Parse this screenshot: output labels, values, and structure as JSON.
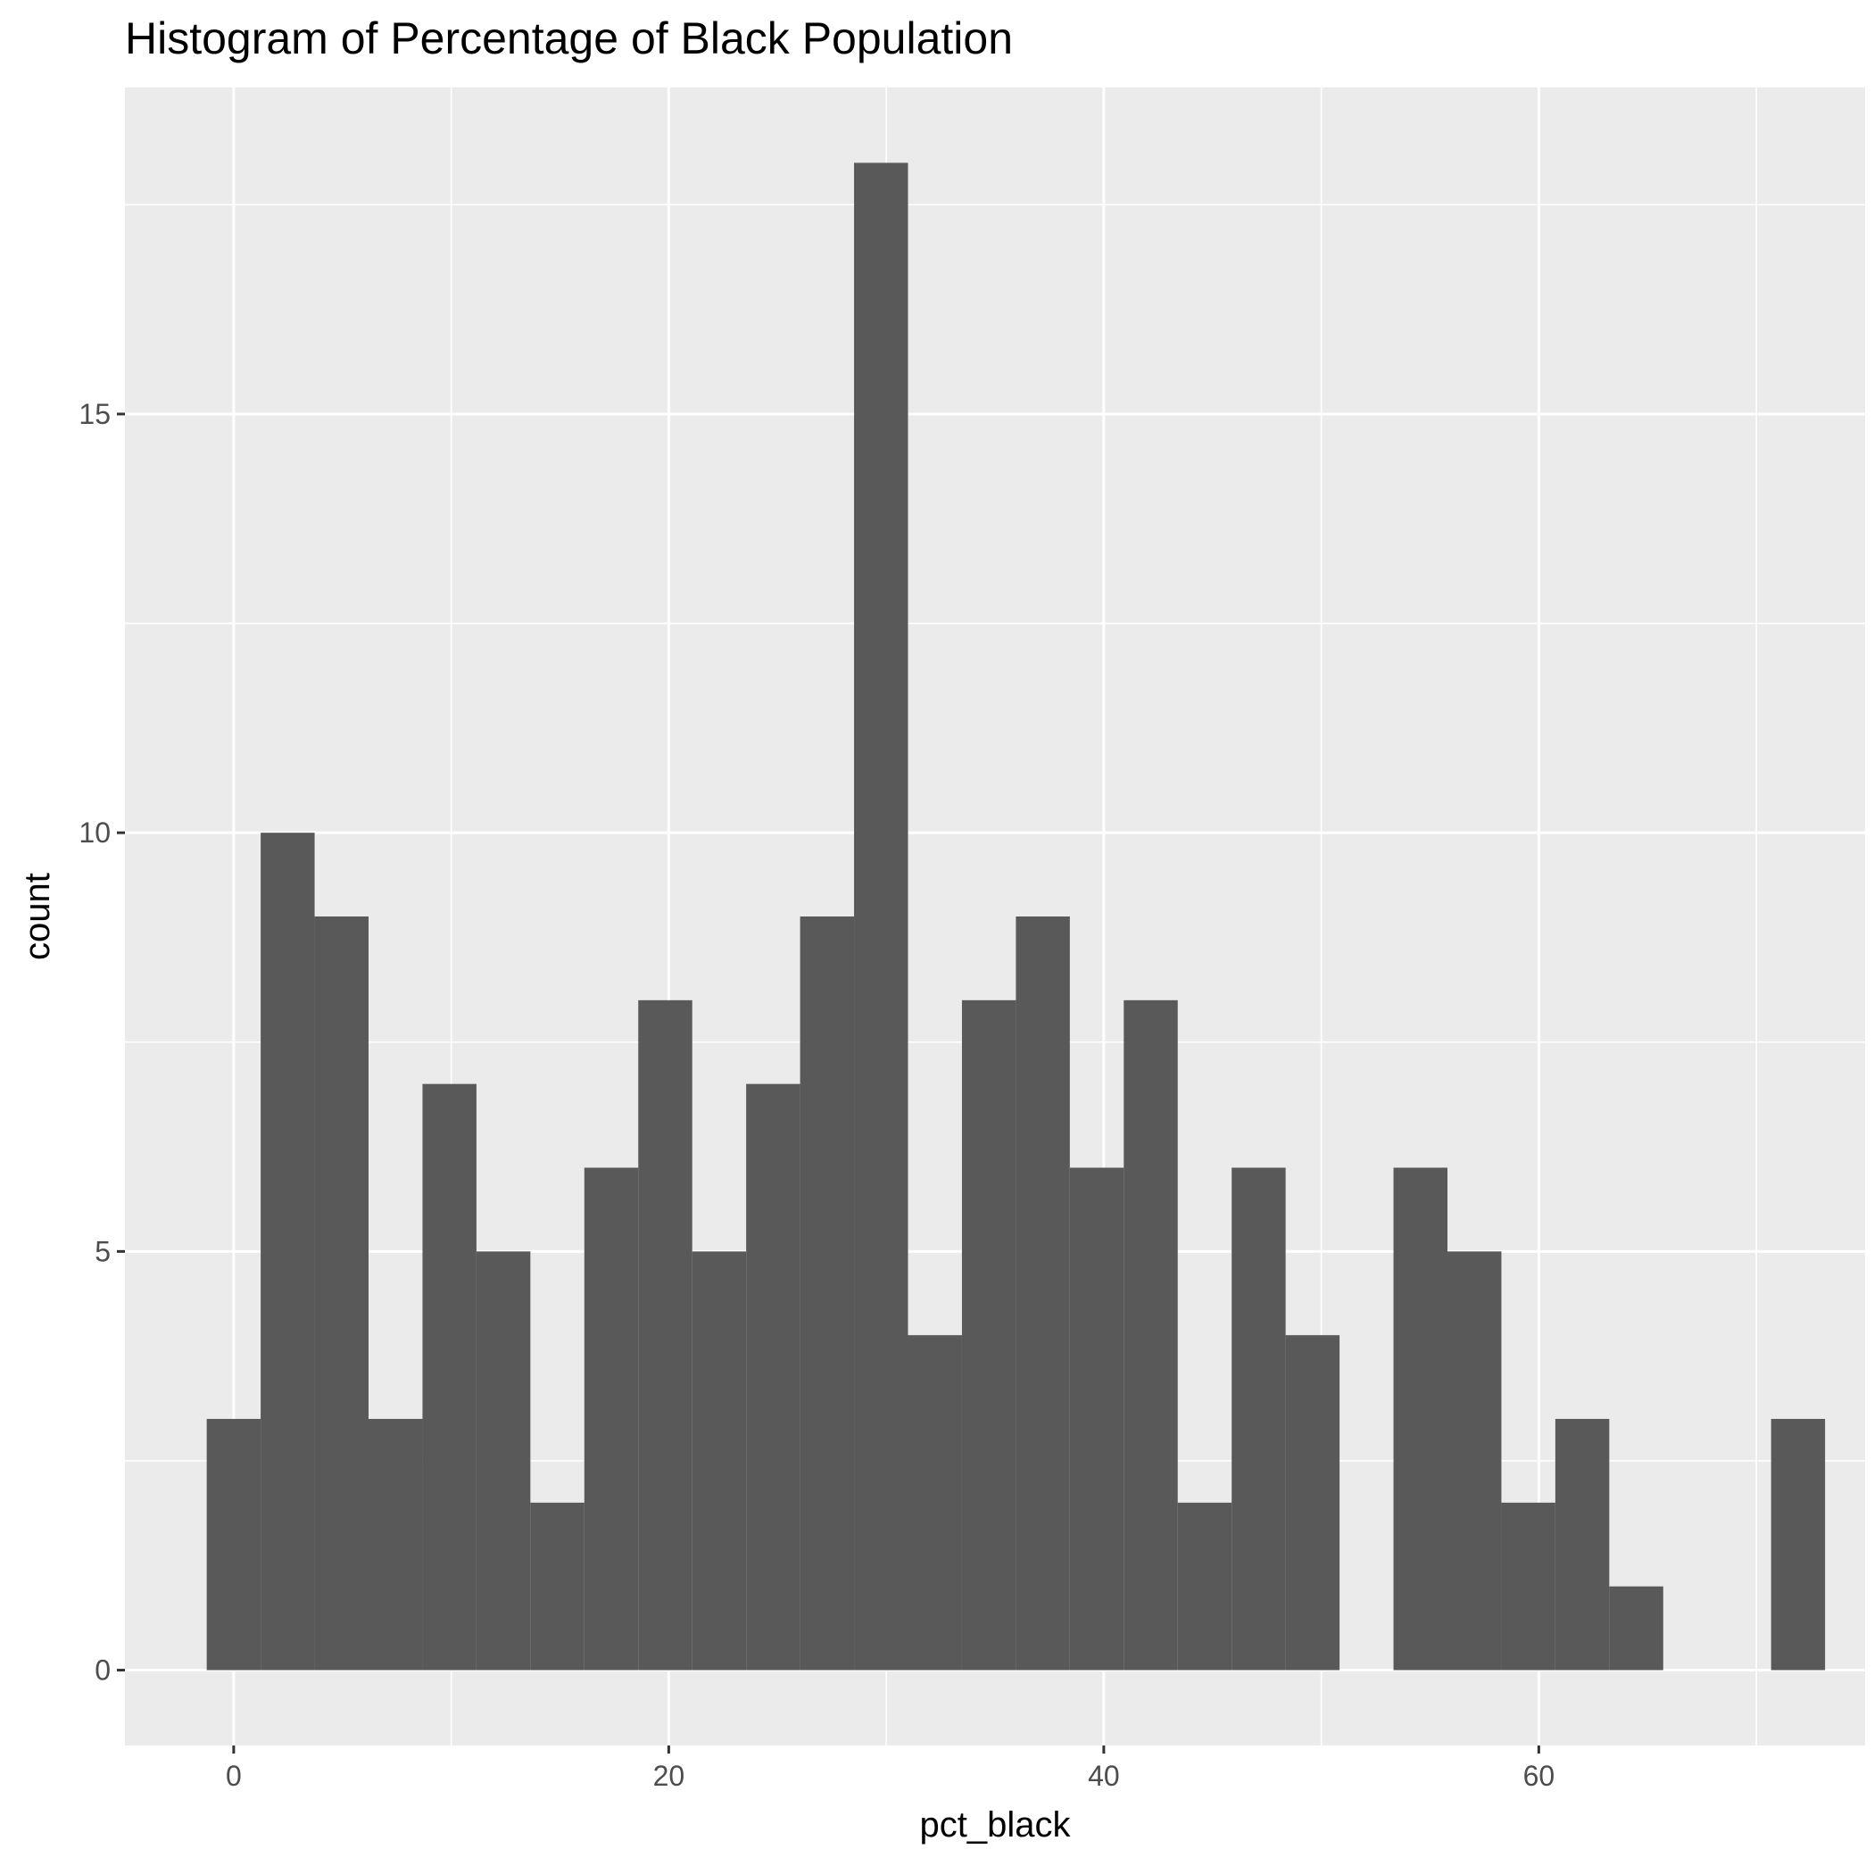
{
  "chart_data": {
    "type": "bar",
    "title": "Histogram of Percentage of Black Population",
    "xlabel": "pct_black",
    "ylabel": "count",
    "bin_width": 2.48,
    "bins": [
      {
        "x": 0.0,
        "count": 3
      },
      {
        "x": 2.48,
        "count": 10
      },
      {
        "x": 4.96,
        "count": 9
      },
      {
        "x": 7.44,
        "count": 3
      },
      {
        "x": 9.92,
        "count": 7
      },
      {
        "x": 12.4,
        "count": 5
      },
      {
        "x": 14.88,
        "count": 2
      },
      {
        "x": 17.36,
        "count": 6
      },
      {
        "x": 19.84,
        "count": 8
      },
      {
        "x": 22.32,
        "count": 5
      },
      {
        "x": 24.8,
        "count": 7
      },
      {
        "x": 27.28,
        "count": 9
      },
      {
        "x": 29.76,
        "count": 18
      },
      {
        "x": 32.24,
        "count": 4
      },
      {
        "x": 34.72,
        "count": 8
      },
      {
        "x": 37.2,
        "count": 9
      },
      {
        "x": 39.68,
        "count": 6
      },
      {
        "x": 42.16,
        "count": 8
      },
      {
        "x": 44.64,
        "count": 2
      },
      {
        "x": 47.12,
        "count": 6
      },
      {
        "x": 49.6,
        "count": 4
      },
      {
        "x": 52.08,
        "count": 0
      },
      {
        "x": 54.56,
        "count": 6
      },
      {
        "x": 57.04,
        "count": 5
      },
      {
        "x": 59.52,
        "count": 2
      },
      {
        "x": 62.0,
        "count": 3
      },
      {
        "x": 64.48,
        "count": 1
      },
      {
        "x": 66.96,
        "count": 0
      },
      {
        "x": 69.44,
        "count": 0
      },
      {
        "x": 71.92,
        "count": 3
      }
    ],
    "xlim": [
      -5,
      75
    ],
    "ylim": [
      -0.9,
      18.9
    ],
    "x_ticks": [
      0,
      20,
      40,
      60
    ],
    "x_tick_labels": [
      "0",
      "20",
      "40",
      "60"
    ],
    "y_ticks": [
      0,
      5,
      10,
      15
    ],
    "y_tick_labels": [
      "0",
      "5",
      "10",
      "15"
    ],
    "grid": true,
    "colors": {
      "panel_background": "#ebebeb",
      "grid_major": "#ffffff",
      "bar_fill": "#595959",
      "tick_label": "#4d4d4d",
      "text": "#000000"
    }
  }
}
